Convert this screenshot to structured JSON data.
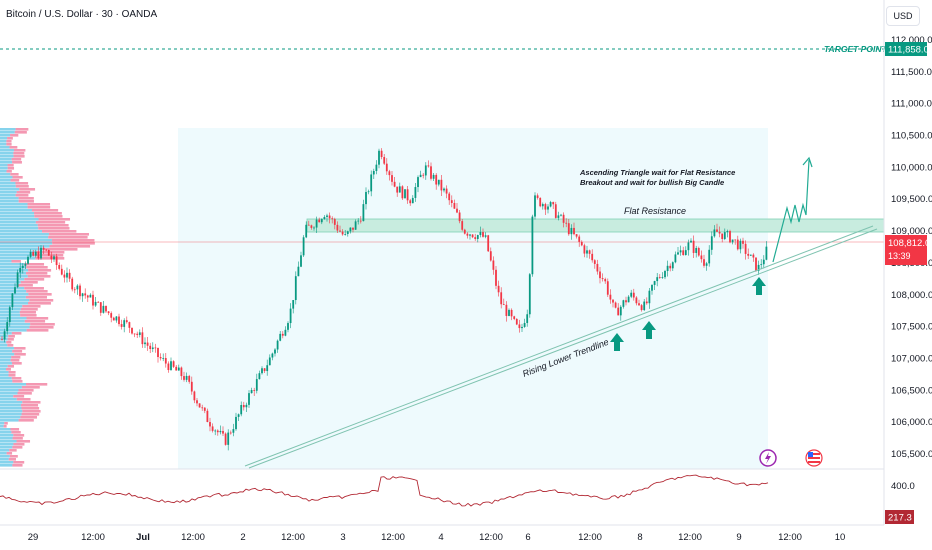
{
  "header": {
    "symbol_title": "Bitcoin / U.S. Dollar · 30 · OANDA",
    "currency_button": "USD"
  },
  "price_axis": {
    "labels": [
      "112,000.0",
      "111,500.0",
      "111,000.0",
      "110,500.0",
      "110,000.0",
      "109,500.0",
      "109,000.0",
      "108,500.0",
      "108,000.0",
      "107,500.0",
      "107,000.0",
      "106,500.0",
      "106,000.0",
      "105,500.0"
    ],
    "current_price": "108,812.0",
    "countdown": "13:39",
    "target_price": "111,858.0"
  },
  "time_axis": {
    "labels": [
      "29",
      "12:00",
      "Jul",
      "12:00",
      "2",
      "12:00",
      "3",
      "12:00",
      "4",
      "12:00",
      "6",
      "12:00",
      "8",
      "12:00",
      "9",
      "12:00",
      "10"
    ]
  },
  "annotations": {
    "target_point": "TARGET POINT",
    "flat_resistance": "Flat Resistance",
    "rising_trendline": "Rising Lower Trendline",
    "idea_line1": "Ascending Triangle wait for Flat Resistance",
    "idea_line2": "Breakout and wait for bullish Big Candle"
  },
  "indicator": {
    "level_label": "400.0",
    "value": "217.3"
  },
  "colors": {
    "up": "#089981",
    "down": "#f23645",
    "target": "#089981",
    "indicator_line": "#b22833",
    "resistance_zone": "#c8ecdf"
  },
  "chart_data": {
    "type": "candlestick",
    "symbol": "BTCUSD",
    "interval": "30",
    "ylim": [
      105300,
      112100
    ],
    "current_price": 108812,
    "target_price": 111858,
    "flat_resistance_zone": [
      108950,
      109200
    ]
  }
}
